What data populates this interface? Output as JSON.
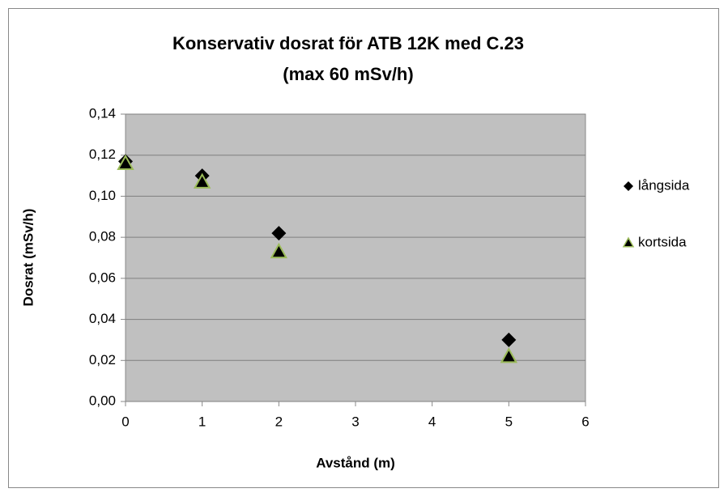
{
  "chart_data": {
    "type": "scatter",
    "title": [
      "Konservativ dosrat för ATB 12K med C.23",
      "(max 60 mSv/h)"
    ],
    "x_label": "Avstånd (m)",
    "y_label": "Dosrat (mSv/h)",
    "xlim": [
      0,
      6
    ],
    "xticks": [
      0,
      1,
      2,
      3,
      4,
      5,
      6
    ],
    "ylim": [
      0,
      0.14
    ],
    "yticks": [
      {
        "value": 0,
        "label": "0,00"
      },
      {
        "value": 0.02,
        "label": "0,02"
      },
      {
        "value": 0.04,
        "label": "0,04"
      },
      {
        "value": 0.06,
        "label": "0,06"
      },
      {
        "value": 0.08,
        "label": "0,08"
      },
      {
        "value": 0.1,
        "label": "0,10"
      },
      {
        "value": 0.12,
        "label": "0,12"
      },
      {
        "value": 0.14,
        "label": "0,14"
      }
    ],
    "grid": true,
    "legend": "right",
    "background": "#c0c0c0",
    "series": [
      {
        "name": "långsida",
        "color": "#000000",
        "marker": "diamond",
        "x": [
          0,
          1,
          2,
          5
        ],
        "values": [
          0.117,
          0.11,
          0.082,
          0.03
        ]
      },
      {
        "name": "kortsida",
        "color": "#000000",
        "edge": "#9bbb59",
        "marker": "triangle",
        "x": [
          0,
          1,
          2,
          5
        ],
        "values": [
          0.116,
          0.107,
          0.073,
          0.022
        ]
      }
    ]
  }
}
